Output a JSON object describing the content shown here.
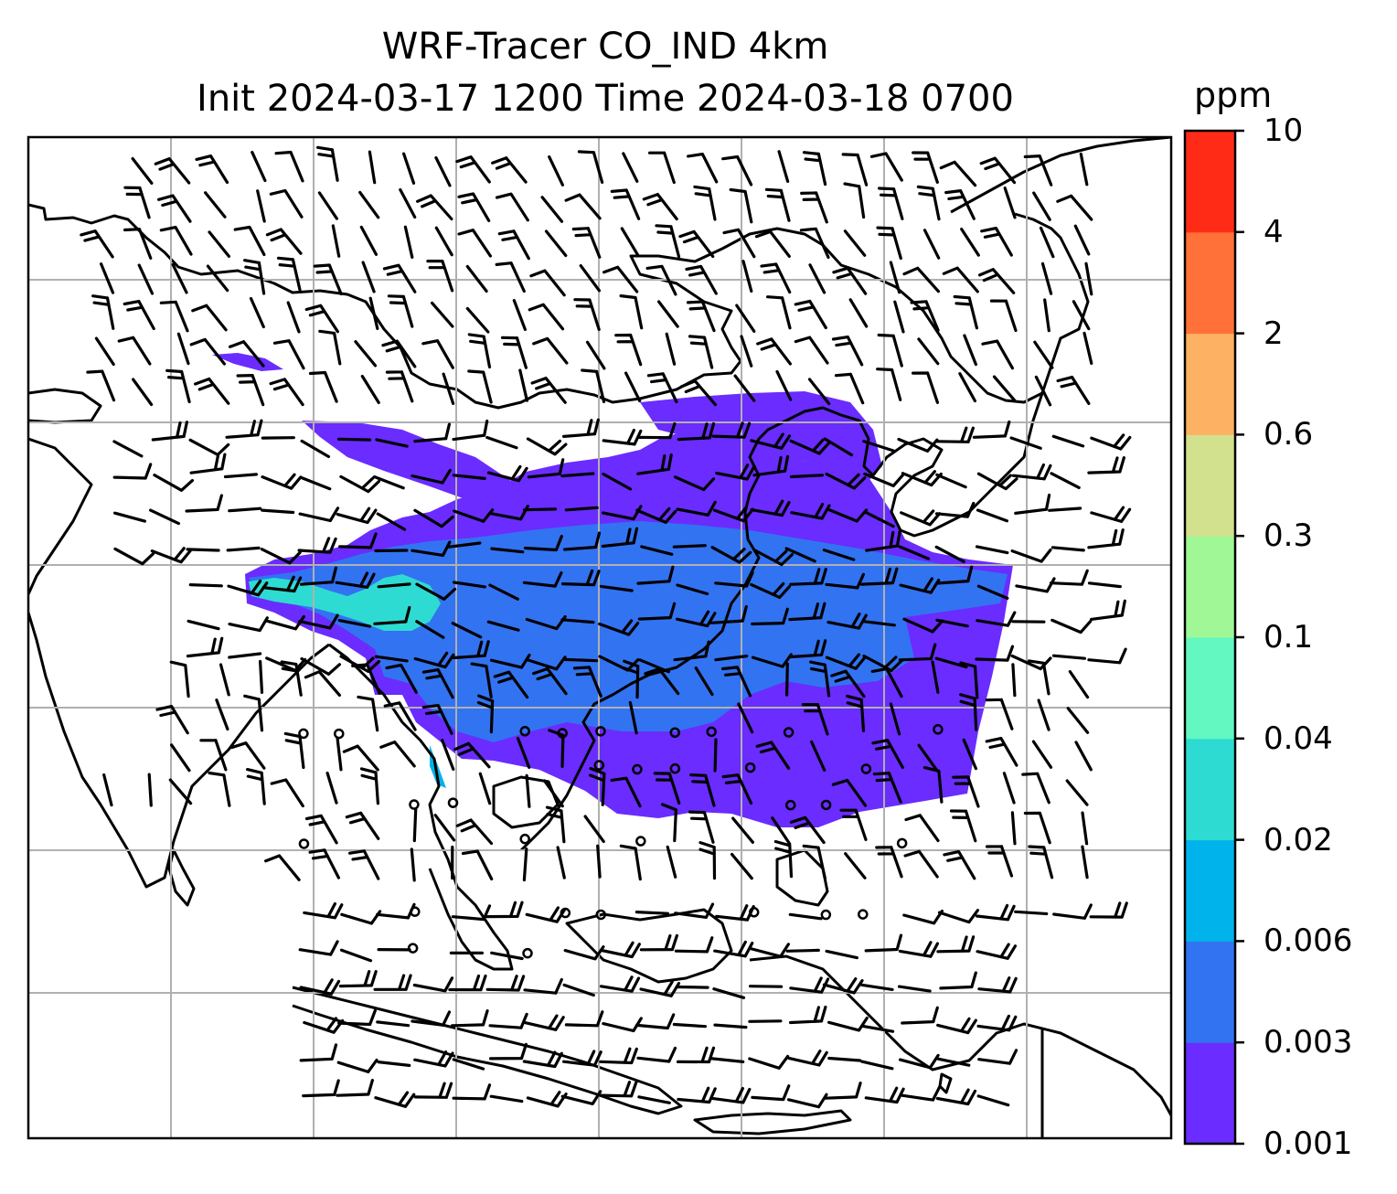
{
  "title": {
    "line1": "WRF-Tracer CO_IND 4km",
    "line2": "Init 2024-03-17 1200 Time 2024-03-18 0700"
  },
  "colorbar": {
    "unit": "ppm",
    "ticks": [
      "0.001",
      "0.003",
      "0.006",
      "0.02",
      "0.04",
      "0.1",
      "0.3",
      "0.6",
      "2",
      "4",
      "10"
    ],
    "colors": [
      "#6a2cff",
      "#3273f2",
      "#00b3ea",
      "#2edbd2",
      "#63f7c1",
      "#9ff796",
      "#d1e18d",
      "#fdb163",
      "#ff7139",
      "#ff2b17"
    ]
  },
  "map": {
    "gridlines": true,
    "layers": [
      "coastlines",
      "CO tracer concentration",
      "wind barbs"
    ]
  }
}
